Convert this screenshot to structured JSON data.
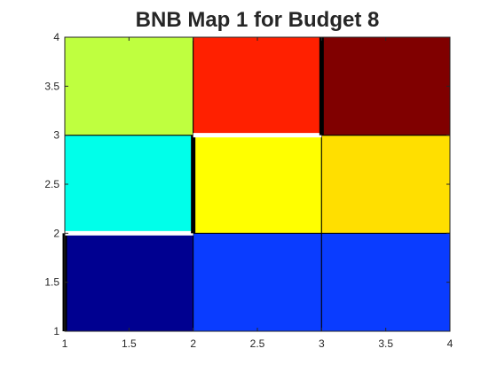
{
  "chart_data": {
    "type": "heatmap",
    "title": "BNB Map 1 for Budget 8",
    "xlabel": "",
    "ylabel": "",
    "xlim": [
      1,
      4
    ],
    "ylim": [
      1,
      4
    ],
    "grid": false,
    "x_ticks": [
      "1",
      "1.5",
      "2",
      "2.5",
      "3",
      "3.5",
      "4"
    ],
    "y_ticks": [
      "1",
      "1.5",
      "2",
      "2.5",
      "3",
      "3.5",
      "4"
    ],
    "x_tick_values": [
      1,
      1.5,
      2,
      2.5,
      3,
      3.5,
      4
    ],
    "y_tick_values": [
      1,
      1.5,
      2,
      2.5,
      3,
      3.5,
      4
    ],
    "cells": [
      {
        "id": "r1c1",
        "x": [
          1,
          2
        ],
        "y": [
          1,
          2
        ],
        "color": "#000090"
      },
      {
        "id": "r1c2",
        "x": [
          2,
          3
        ],
        "y": [
          1,
          2
        ],
        "color": "#0a3cff"
      },
      {
        "id": "r1c3",
        "x": [
          3,
          4
        ],
        "y": [
          1,
          2
        ],
        "color": "#0a3cff"
      },
      {
        "id": "r2c1",
        "x": [
          1,
          2
        ],
        "y": [
          2,
          3
        ],
        "color": "#00ffea"
      },
      {
        "id": "r2c2",
        "x": [
          2,
          3
        ],
        "y": [
          2,
          3
        ],
        "color": "#ffff00"
      },
      {
        "id": "r2c3",
        "x": [
          3,
          4
        ],
        "y": [
          2,
          3
        ],
        "color": "#ffdf00"
      },
      {
        "id": "r3c1",
        "x": [
          1,
          2
        ],
        "y": [
          3,
          4
        ],
        "color": "#bfff3f"
      },
      {
        "id": "r3c2",
        "x": [
          2,
          3
        ],
        "y": [
          3,
          4
        ],
        "color": "#ff2000"
      },
      {
        "id": "r3c3",
        "x": [
          3,
          4
        ],
        "y": [
          3,
          4
        ],
        "color": "#800000"
      }
    ],
    "boundaries": [
      {
        "id": "black-left-1",
        "x1": 1,
        "y1": 1,
        "x2": 1,
        "y2": 2,
        "color": "#000000"
      },
      {
        "id": "white-h-2",
        "x1": 1,
        "y1": 2,
        "x2": 2,
        "y2": 2,
        "color": "#ffffff"
      },
      {
        "id": "black-v-2",
        "x1": 2,
        "y1": 2,
        "x2": 2,
        "y2": 3,
        "color": "#000000"
      },
      {
        "id": "white-h-3",
        "x1": 2,
        "y1": 3,
        "x2": 3,
        "y2": 3,
        "color": "#ffffff"
      },
      {
        "id": "black-v-3",
        "x1": 3,
        "y1": 3,
        "x2": 3,
        "y2": 4,
        "color": "#000000"
      }
    ]
  }
}
